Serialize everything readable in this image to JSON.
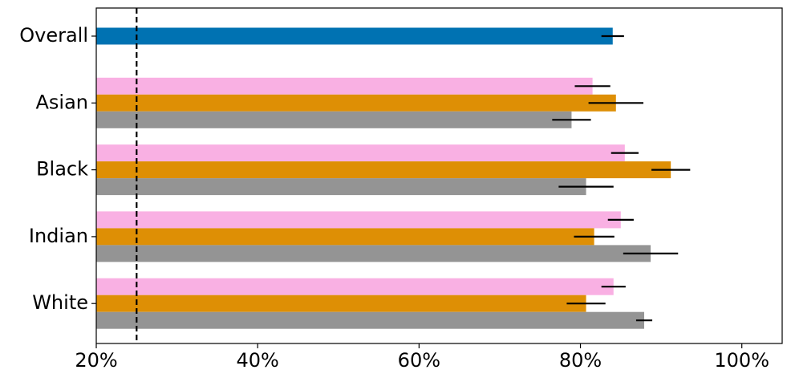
{
  "chart_data": {
    "type": "bar",
    "orientation": "horizontal",
    "categories": [
      "Overall",
      "Asian",
      "Black",
      "Indian",
      "White"
    ],
    "series": [
      {
        "color": "#0072b2",
        "values": [
          84.0,
          null,
          null,
          null,
          null
        ],
        "errors": [
          1.4,
          null,
          null,
          null,
          null
        ]
      },
      {
        "color": "#f9b0e3",
        "values": [
          null,
          81.5,
          85.5,
          85.0,
          84.1
        ],
        "errors": [
          null,
          2.2,
          1.7,
          1.6,
          1.5
        ]
      },
      {
        "color": "#de8f05",
        "values": [
          null,
          84.4,
          91.2,
          81.7,
          80.7
        ],
        "errors": [
          null,
          3.4,
          2.4,
          2.5,
          2.4
        ]
      },
      {
        "color": "#949494",
        "values": [
          null,
          78.9,
          80.7,
          88.7,
          87.9
        ],
        "errors": [
          null,
          2.4,
          3.4,
          3.4,
          1.0
        ]
      }
    ],
    "xlim": [
      20,
      105
    ],
    "xticks": [
      {
        "value": 20,
        "label": "20%"
      },
      {
        "value": 40,
        "label": "40%"
      },
      {
        "value": 60,
        "label": "60%"
      },
      {
        "value": 80,
        "label": "80%"
      },
      {
        "value": 100,
        "label": "100%"
      }
    ],
    "reference_line": 25
  }
}
